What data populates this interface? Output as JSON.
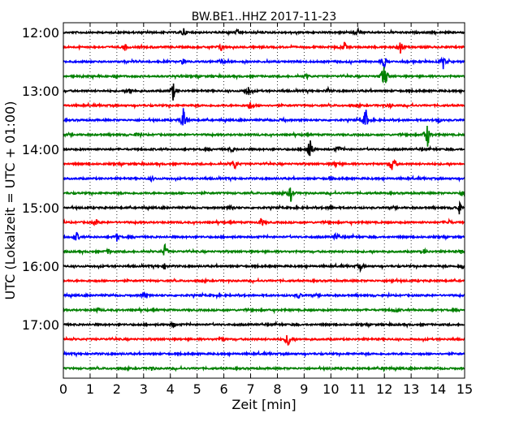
{
  "chart_data": {
    "type": "line",
    "title": "BW.BE1..HHZ 2017-11-23",
    "xlabel": "Zeit  [min]",
    "ylabel": "UTC (Lokalzeit = UTC + 01:00)",
    "xlim": [
      0,
      15
    ],
    "x_ticks": [
      0,
      1,
      2,
      3,
      4,
      5,
      6,
      7,
      8,
      9,
      10,
      11,
      12,
      13,
      14,
      15
    ],
    "y_tick_labels": [
      "12:00",
      "13:00",
      "14:00",
      "15:00",
      "16:00",
      "17:00"
    ],
    "grid": true,
    "series_colors": [
      "#000000",
      "#ff0000",
      "#0000ff",
      "#008000"
    ],
    "traces": [
      {
        "start": "12:00",
        "color": "#000000",
        "events": [
          [
            4.5,
            0.5
          ],
          [
            11.0,
            0.5
          ],
          [
            6.5,
            0.2
          ]
        ]
      },
      {
        "start": "12:15",
        "color": "#ff0000",
        "events": [
          [
            2.3,
            0.3
          ],
          [
            5.9,
            0.4
          ],
          [
            10.5,
            0.5
          ],
          [
            12.6,
            0.7
          ]
        ]
      },
      {
        "start": "12:30",
        "color": "#0000ff",
        "events": [
          [
            4.5,
            0.4
          ],
          [
            5.9,
            0.3
          ],
          [
            12.0,
            0.6
          ],
          [
            14.2,
            0.7
          ]
        ]
      },
      {
        "start": "12:45",
        "color": "#008000",
        "events": [
          [
            1.9,
            0.2
          ],
          [
            9.1,
            0.2
          ],
          [
            12.0,
            2.0
          ]
        ]
      },
      {
        "start": "13:00",
        "color": "#000000",
        "events": [
          [
            2.5,
            0.4
          ],
          [
            4.1,
            1.0
          ],
          [
            6.9,
            0.7
          ],
          [
            9.9,
            0.2
          ]
        ]
      },
      {
        "start": "13:15",
        "color": "#ff0000",
        "events": [
          [
            7.0,
            0.5
          ],
          [
            12.2,
            0.2
          ]
        ]
      },
      {
        "start": "13:30",
        "color": "#0000ff",
        "events": [
          [
            4.5,
            1.6
          ],
          [
            8.2,
            0.3
          ],
          [
            11.3,
            1.3
          ],
          [
            14.0,
            0.4
          ]
        ]
      },
      {
        "start": "13:45",
        "color": "#008000",
        "events": [
          [
            2.8,
            0.3
          ],
          [
            13.6,
            1.6
          ]
        ]
      },
      {
        "start": "14:00",
        "color": "#000000",
        "events": [
          [
            6.3,
            0.3
          ],
          [
            9.2,
            1.5
          ],
          [
            10.3,
            0.4
          ]
        ]
      },
      {
        "start": "14:15",
        "color": "#ff0000",
        "events": [
          [
            6.4,
            0.6
          ],
          [
            10.2,
            0.4
          ],
          [
            12.3,
            1.2
          ]
        ]
      },
      {
        "start": "14:30",
        "color": "#0000ff",
        "events": [
          [
            3.3,
            0.2
          ],
          [
            10.0,
            0.2
          ]
        ]
      },
      {
        "start": "14:45",
        "color": "#008000",
        "events": [
          [
            8.5,
            0.9
          ],
          [
            14.9,
            0.3
          ]
        ]
      },
      {
        "start": "15:00",
        "color": "#000000",
        "events": [
          [
            6.3,
            0.4
          ],
          [
            10.0,
            0.3
          ],
          [
            14.8,
            0.6
          ]
        ]
      },
      {
        "start": "15:15",
        "color": "#ff0000",
        "events": [
          [
            1.2,
            0.4
          ],
          [
            7.4,
            0.5
          ],
          [
            14.4,
            0.3
          ]
        ]
      },
      {
        "start": "15:30",
        "color": "#0000ff",
        "events": [
          [
            0.5,
            0.5
          ],
          [
            2.0,
            0.4
          ],
          [
            10.2,
            0.5
          ]
        ]
      },
      {
        "start": "15:45",
        "color": "#008000",
        "events": [
          [
            1.7,
            0.3
          ],
          [
            3.8,
            0.8
          ],
          [
            13.5,
            0.3
          ],
          [
            14.9,
            0.3
          ]
        ]
      },
      {
        "start": "16:00",
        "color": "#000000",
        "events": [
          [
            3.8,
            0.3
          ],
          [
            11.1,
            0.4
          ],
          [
            14.9,
            0.3
          ]
        ]
      },
      {
        "start": "16:15",
        "color": "#ff0000",
        "events": [
          [
            12.3,
            0.2
          ]
        ]
      },
      {
        "start": "16:30",
        "color": "#0000ff",
        "events": [
          [
            3.0,
            0.3
          ],
          [
            8.8,
            0.3
          ]
        ]
      },
      {
        "start": "16:45",
        "color": "#008000",
        "events": [
          [
            1.3,
            0.2
          ],
          [
            12.4,
            0.3
          ]
        ]
      },
      {
        "start": "17:00",
        "color": "#000000",
        "events": [
          [
            4.1,
            0.3
          ]
        ]
      },
      {
        "start": "17:15",
        "color": "#ff0000",
        "events": [
          [
            5.9,
            0.3
          ],
          [
            8.4,
            0.9
          ]
        ]
      },
      {
        "start": "17:30",
        "color": "#0000ff",
        "events": []
      },
      {
        "start": "17:45",
        "color": "#008000",
        "events": [
          [
            3.3,
            0.2
          ],
          [
            12.0,
            0.2
          ]
        ]
      }
    ]
  }
}
